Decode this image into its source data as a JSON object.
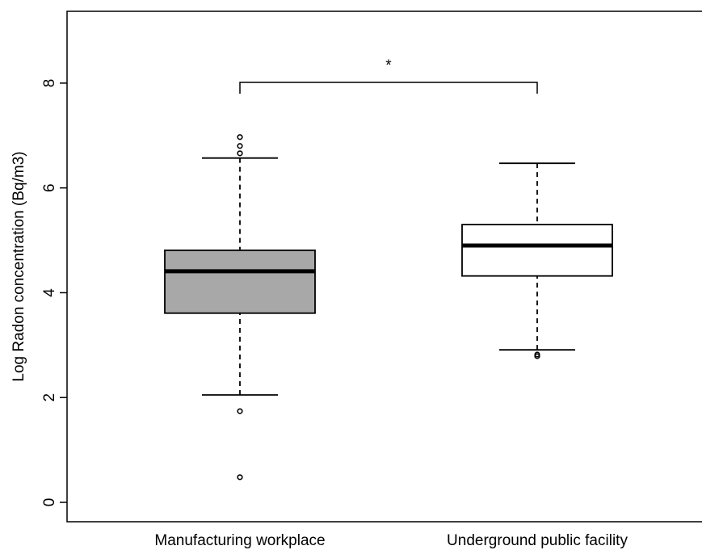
{
  "chart_data": {
    "type": "boxplot",
    "y_label": "Log Radon concentration (Bq/m3)",
    "categories": [
      "Manufacturing workplace",
      "Underground public facility"
    ],
    "series": [
      {
        "name": "Manufacturing workplace",
        "color": "#a8a8a8",
        "whisker_low": 2.05,
        "q1": 3.61,
        "median": 4.41,
        "q3": 4.81,
        "whisker_high": 6.57,
        "outliers": [
          6.97,
          6.8,
          6.66,
          1.74,
          0.48
        ]
      },
      {
        "name": "Underground public facility",
        "color": "#ffffff",
        "whisker_low": 2.91,
        "q1": 4.32,
        "median": 4.9,
        "q3": 5.3,
        "whisker_high": 6.47,
        "outliers": [
          2.82,
          2.79
        ]
      }
    ],
    "annotation": "*",
    "ylim": [
      -0.37,
      9.37
    ],
    "yticks": [
      0,
      2,
      4,
      6,
      8
    ]
  }
}
